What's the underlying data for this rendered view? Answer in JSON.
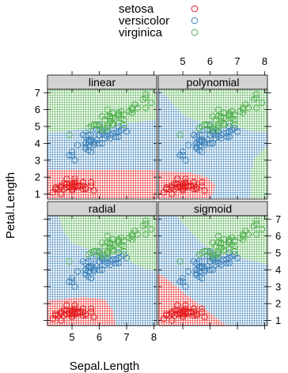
{
  "chart_data": {
    "type": "scatter",
    "xlabel": "Sepal.Length",
    "ylabel": "Petal.Length",
    "xlim": [
      4.1,
      8.1
    ],
    "ylim": [
      0.7,
      7.2
    ],
    "x_ticks": [
      5,
      6,
      7,
      8
    ],
    "y_ticks": [
      1,
      2,
      3,
      4,
      5,
      6,
      7
    ],
    "legend_position": "top-center",
    "colors": {
      "setosa": "#e41a1c",
      "versicolor": "#377eb8",
      "virginica": "#4daf4a"
    },
    "series": [
      {
        "name": "setosa",
        "points": [
          [
            5.1,
            1.4
          ],
          [
            4.9,
            1.4
          ],
          [
            4.7,
            1.3
          ],
          [
            4.6,
            1.5
          ],
          [
            5.0,
            1.4
          ],
          [
            5.4,
            1.7
          ],
          [
            4.6,
            1.4
          ],
          [
            5.0,
            1.5
          ],
          [
            4.4,
            1.4
          ],
          [
            4.9,
            1.5
          ],
          [
            5.4,
            1.5
          ],
          [
            4.8,
            1.6
          ],
          [
            4.8,
            1.4
          ],
          [
            4.3,
            1.1
          ],
          [
            5.8,
            1.2
          ],
          [
            5.7,
            1.5
          ],
          [
            5.4,
            1.3
          ],
          [
            5.1,
            1.4
          ],
          [
            5.7,
            1.7
          ],
          [
            5.1,
            1.5
          ],
          [
            5.4,
            1.7
          ],
          [
            5.1,
            1.5
          ],
          [
            4.6,
            1.0
          ],
          [
            5.1,
            1.7
          ],
          [
            4.8,
            1.9
          ],
          [
            5.0,
            1.6
          ],
          [
            5.0,
            1.6
          ],
          [
            5.2,
            1.5
          ],
          [
            5.2,
            1.4
          ],
          [
            4.7,
            1.6
          ],
          [
            4.8,
            1.6
          ],
          [
            5.4,
            1.5
          ],
          [
            5.2,
            1.5
          ],
          [
            5.5,
            1.4
          ],
          [
            4.9,
            1.5
          ],
          [
            5.0,
            1.2
          ],
          [
            5.5,
            1.3
          ],
          [
            4.9,
            1.4
          ],
          [
            4.4,
            1.3
          ],
          [
            5.1,
            1.5
          ],
          [
            5.0,
            1.3
          ],
          [
            4.5,
            1.3
          ],
          [
            4.4,
            1.3
          ],
          [
            5.0,
            1.6
          ],
          [
            5.1,
            1.9
          ],
          [
            4.8,
            1.4
          ],
          [
            5.1,
            1.6
          ],
          [
            4.6,
            1.4
          ],
          [
            5.3,
            1.5
          ],
          [
            5.0,
            1.4
          ]
        ]
      },
      {
        "name": "versicolor",
        "points": [
          [
            7.0,
            4.7
          ],
          [
            6.4,
            4.5
          ],
          [
            6.9,
            4.9
          ],
          [
            5.5,
            4.0
          ],
          [
            6.5,
            4.6
          ],
          [
            5.7,
            4.5
          ],
          [
            6.3,
            4.7
          ],
          [
            4.9,
            3.3
          ],
          [
            6.6,
            4.6
          ],
          [
            5.2,
            3.9
          ],
          [
            5.0,
            3.5
          ],
          [
            5.9,
            4.2
          ],
          [
            6.0,
            4.0
          ],
          [
            6.1,
            4.7
          ],
          [
            5.6,
            3.6
          ],
          [
            6.7,
            4.4
          ],
          [
            5.6,
            4.5
          ],
          [
            5.8,
            4.1
          ],
          [
            6.2,
            4.5
          ],
          [
            5.6,
            3.9
          ],
          [
            5.9,
            4.8
          ],
          [
            6.1,
            4.0
          ],
          [
            6.3,
            4.9
          ],
          [
            6.1,
            4.7
          ],
          [
            6.4,
            4.3
          ],
          [
            6.6,
            4.4
          ],
          [
            6.8,
            4.8
          ],
          [
            6.7,
            5.0
          ],
          [
            6.0,
            4.5
          ],
          [
            5.7,
            3.5
          ],
          [
            5.5,
            3.8
          ],
          [
            5.5,
            3.7
          ],
          [
            5.8,
            3.9
          ],
          [
            6.0,
            5.1
          ],
          [
            5.4,
            4.5
          ],
          [
            6.0,
            4.5
          ],
          [
            6.7,
            4.7
          ],
          [
            6.3,
            4.4
          ],
          [
            5.6,
            4.1
          ],
          [
            5.5,
            4.0
          ],
          [
            5.5,
            4.4
          ],
          [
            6.1,
            4.6
          ],
          [
            5.8,
            4.0
          ],
          [
            5.0,
            3.3
          ],
          [
            5.6,
            4.2
          ],
          [
            5.7,
            4.2
          ],
          [
            5.7,
            4.2
          ],
          [
            6.2,
            4.3
          ],
          [
            5.1,
            3.0
          ],
          [
            5.7,
            4.1
          ]
        ]
      },
      {
        "name": "virginica",
        "points": [
          [
            6.3,
            6.0
          ],
          [
            5.8,
            5.1
          ],
          [
            7.1,
            5.9
          ],
          [
            6.3,
            5.6
          ],
          [
            6.5,
            5.8
          ],
          [
            7.6,
            6.6
          ],
          [
            4.9,
            4.5
          ],
          [
            7.3,
            6.3
          ],
          [
            6.7,
            5.8
          ],
          [
            7.2,
            6.1
          ],
          [
            6.5,
            5.1
          ],
          [
            6.4,
            5.3
          ],
          [
            6.8,
            5.5
          ],
          [
            5.7,
            5.0
          ],
          [
            5.8,
            5.1
          ],
          [
            6.4,
            5.3
          ],
          [
            6.5,
            5.5
          ],
          [
            7.7,
            6.7
          ],
          [
            7.7,
            6.9
          ],
          [
            6.0,
            5.0
          ],
          [
            6.9,
            5.7
          ],
          [
            5.6,
            4.9
          ],
          [
            7.7,
            6.7
          ],
          [
            6.3,
            4.9
          ],
          [
            6.7,
            5.7
          ],
          [
            7.2,
            6.0
          ],
          [
            6.2,
            4.8
          ],
          [
            6.1,
            4.9
          ],
          [
            6.4,
            5.6
          ],
          [
            7.2,
            5.8
          ],
          [
            7.4,
            6.1
          ],
          [
            7.9,
            6.4
          ],
          [
            6.4,
            5.6
          ],
          [
            6.3,
            5.1
          ],
          [
            6.1,
            5.6
          ],
          [
            7.7,
            6.1
          ],
          [
            6.3,
            5.6
          ],
          [
            6.4,
            5.5
          ],
          [
            6.0,
            4.8
          ],
          [
            6.9,
            5.4
          ],
          [
            6.7,
            5.6
          ],
          [
            6.9,
            5.1
          ],
          [
            5.8,
            5.1
          ],
          [
            6.8,
            5.9
          ],
          [
            6.7,
            5.7
          ],
          [
            6.7,
            5.2
          ],
          [
            6.3,
            5.0
          ],
          [
            6.5,
            5.2
          ],
          [
            6.2,
            5.4
          ],
          [
            5.9,
            5.1
          ]
        ]
      }
    ],
    "panels": [
      {
        "title": "linear",
        "region_kind": "linear"
      },
      {
        "title": "polynomial",
        "region_kind": "polynomial"
      },
      {
        "title": "radial",
        "region_kind": "radial"
      },
      {
        "title": "sigmoid",
        "region_kind": "sigmoid"
      }
    ]
  }
}
